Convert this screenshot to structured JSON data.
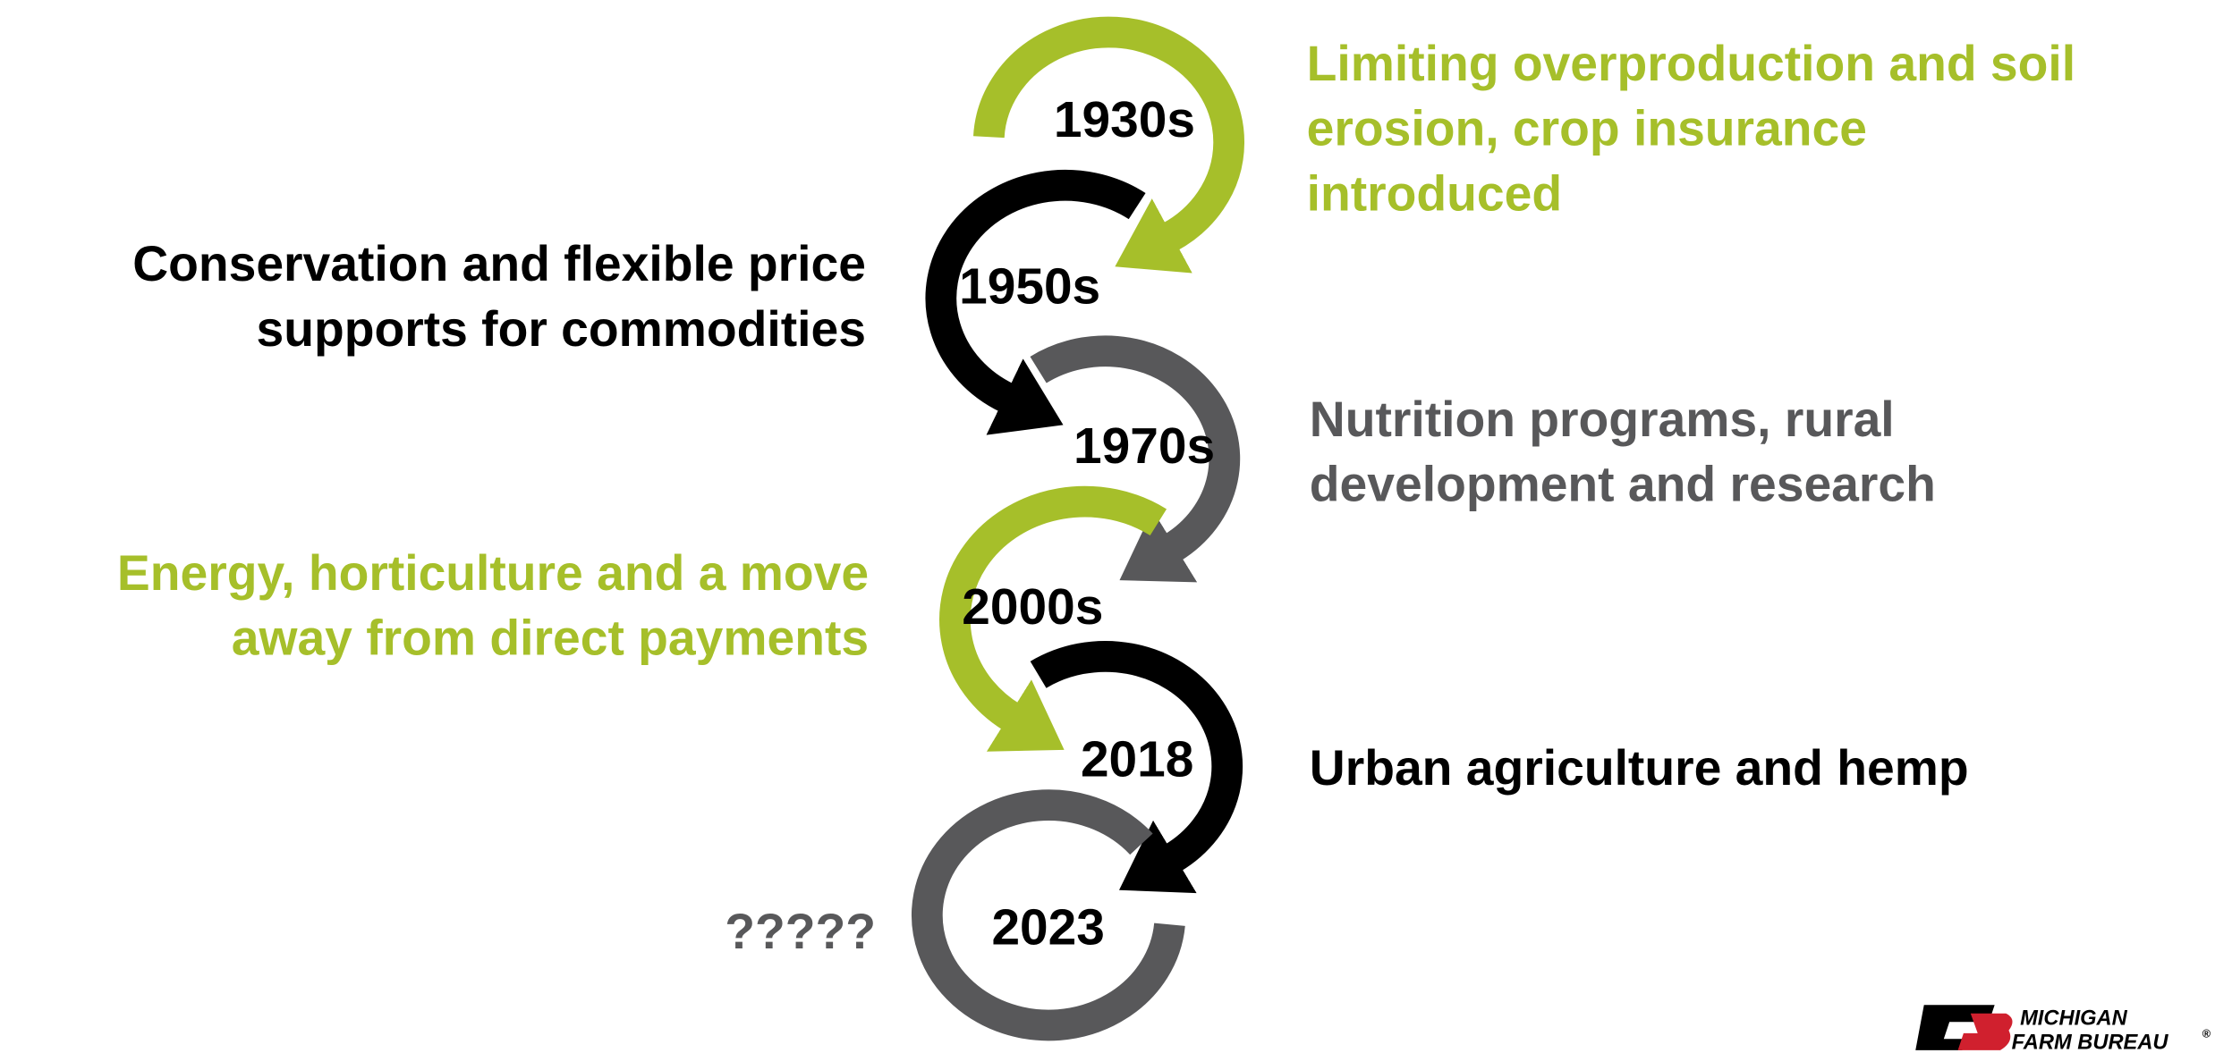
{
  "eras": [
    {
      "year": "1930s",
      "description": [
        "Limiting overproduction and soil",
        "erosion, crop insurance",
        "introduced"
      ]
    },
    {
      "year": "1950s",
      "description": [
        "Conservation and flexible price",
        "supports for commodities"
      ]
    },
    {
      "year": "1970s",
      "description": [
        "Nutrition programs, rural",
        "development and research"
      ]
    },
    {
      "year": "2000s",
      "description": [
        "Energy, horticulture and a move",
        "away from direct payments"
      ]
    },
    {
      "year": "2018",
      "description": [
        "Urban agriculture and hemp"
      ]
    },
    {
      "year": "2023",
      "description": [
        "?????"
      ]
    }
  ],
  "logo": {
    "line1": "MICHIGAN",
    "line2": "FARM BUREAU",
    "mark": "®"
  }
}
